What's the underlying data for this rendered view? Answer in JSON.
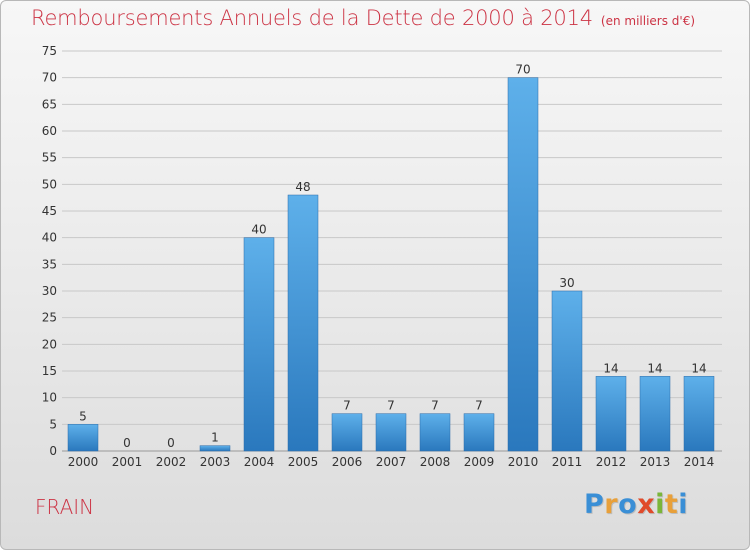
{
  "title": "Remboursements Annuels de la Dette de 2000 à 2014",
  "unit_label": "(en milliers d'€)",
  "commune": "FRAIN",
  "logo": {
    "text": "Proxiti",
    "letters": [
      "P",
      "r",
      "o",
      "x",
      "i",
      "t",
      "i"
    ],
    "colors": [
      "#3a8fd6",
      "#e8a03a",
      "#3a8fd6",
      "#e04a2a",
      "#7ab63a",
      "#e8a03a",
      "#3a8fd6"
    ]
  },
  "colors": {
    "title": "#cc3344",
    "bar_top": "#5eb0ea",
    "bar_bottom": "#2a78bd",
    "grid": "#c8c8c8",
    "axis_text": "#333333"
  },
  "chart_data": {
    "type": "bar",
    "title": "Remboursements Annuels de la Dette de 2000 à 2014",
    "ylabel": "en milliers d'€",
    "xlabel": "",
    "categories": [
      "2000",
      "2001",
      "2002",
      "2003",
      "2004",
      "2005",
      "2006",
      "2007",
      "2008",
      "2009",
      "2010",
      "2011",
      "2012",
      "2013",
      "2014"
    ],
    "values": [
      5,
      0,
      0,
      1,
      40,
      48,
      7,
      7,
      7,
      7,
      70,
      30,
      14,
      14,
      14
    ],
    "ylim": [
      0,
      75
    ],
    "yticks": [
      0,
      5,
      10,
      15,
      20,
      25,
      30,
      35,
      40,
      45,
      50,
      55,
      60,
      65,
      70,
      75
    ],
    "grid": true
  }
}
